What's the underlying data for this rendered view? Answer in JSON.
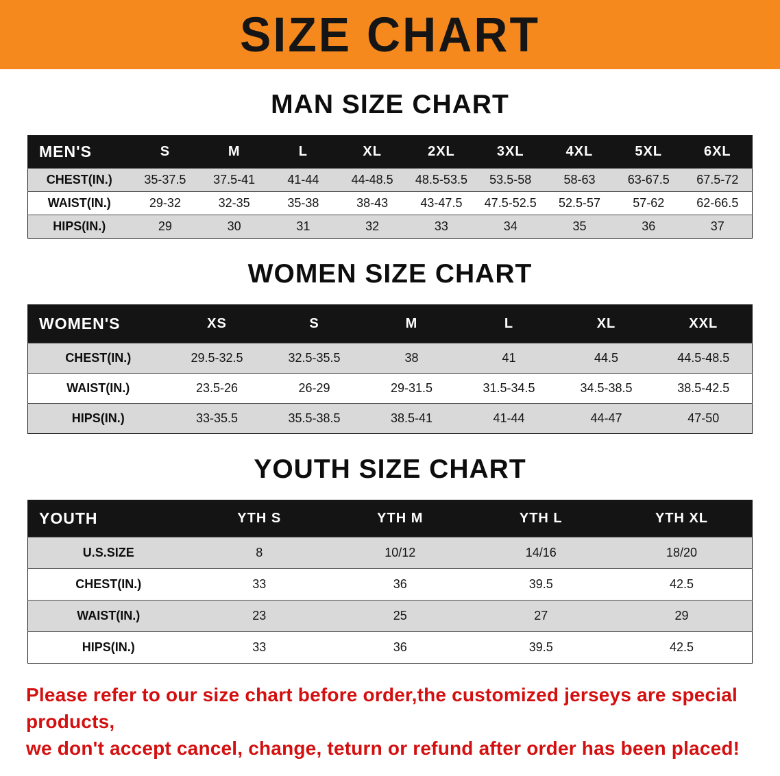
{
  "banner": {
    "title": "SIZE CHART",
    "bg_color": "#f6891e",
    "text_color": "#151515"
  },
  "sections": [
    {
      "title": "MAN SIZE CHART",
      "table": {
        "header": [
          "MEN'S",
          "S",
          "M",
          "L",
          "XL",
          "2XL",
          "3XL",
          "4XL",
          "5XL",
          "6XL"
        ],
        "rows": [
          [
            "CHEST(IN.)",
            "35-37.5",
            "37.5-41",
            "41-44",
            "44-48.5",
            "48.5-53.5",
            "53.5-58",
            "58-63",
            "63-67.5",
            "67.5-72"
          ],
          [
            "WAIST(IN.)",
            "29-32",
            "32-35",
            "35-38",
            "38-43",
            "43-47.5",
            "47.5-52.5",
            "52.5-57",
            "57-62",
            "62-66.5"
          ],
          [
            "HIPS(IN.)",
            "29",
            "30",
            "31",
            "32",
            "33",
            "34",
            "35",
            "36",
            "37"
          ]
        ]
      }
    },
    {
      "title": "WOMEN SIZE CHART",
      "table": {
        "header": [
          "WOMEN'S",
          "XS",
          "S",
          "M",
          "L",
          "XL",
          "XXL"
        ],
        "rows": [
          [
            "CHEST(IN.)",
            "29.5-32.5",
            "32.5-35.5",
            "38",
            "41",
            "44.5",
            "44.5-48.5"
          ],
          [
            "WAIST(IN.)",
            "23.5-26",
            "26-29",
            "29-31.5",
            "31.5-34.5",
            "34.5-38.5",
            "38.5-42.5"
          ],
          [
            "HIPS(IN.)",
            "33-35.5",
            "35.5-38.5",
            "38.5-41",
            "41-44",
            "44-47",
            "47-50"
          ]
        ]
      }
    },
    {
      "title": "YOUTH SIZE CHART",
      "table": {
        "header": [
          "YOUTH",
          "YTH S",
          "YTH M",
          "YTH L",
          "YTH XL"
        ],
        "rows": [
          [
            "U.S.SIZE",
            "8",
            "10/12",
            "14/16",
            "18/20"
          ],
          [
            "CHEST(IN.)",
            "33",
            "36",
            "39.5",
            "42.5"
          ],
          [
            "WAIST(IN.)",
            "23",
            "25",
            "27",
            "29"
          ],
          [
            "HIPS(IN.)",
            "33",
            "36",
            "39.5",
            "42.5"
          ]
        ]
      }
    }
  ],
  "footer": {
    "line1": "Please refer to our size chart before order,the customized jerseys are special products,",
    "line2": "we don't accept cancel, change, teturn or refund after order has been placed!",
    "color": "#d40f0f"
  }
}
